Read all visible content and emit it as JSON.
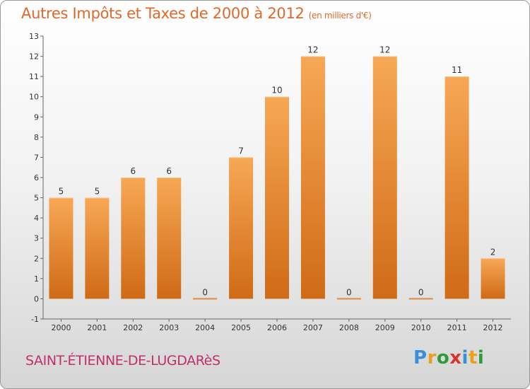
{
  "title": "Autres Impôts et Taxes de 2000 à 2012",
  "subtitle": "(en milliers d'€)",
  "commune": "SAINT-ÉTIENNE-DE-LUGDARèS",
  "logo": {
    "letters": [
      "P",
      "r",
      "o",
      "x",
      "i",
      "t",
      "i"
    ],
    "colors": [
      "#3a8fd6",
      "#e9a11b",
      "#2e9a3a",
      "#d9352d",
      "#3a8fd6",
      "#e9a11b",
      "#2e9a3a"
    ]
  },
  "colors": {
    "bar": "#f08a2b",
    "bar_light": "#f7b063",
    "bar_dark": "#c96416",
    "axis": "#555555",
    "text": "#333333"
  },
  "chart_data": {
    "type": "bar",
    "categories": [
      "2000",
      "2001",
      "2002",
      "2003",
      "2004",
      "2005",
      "2006",
      "2007",
      "2008",
      "2009",
      "2010",
      "2011",
      "2012"
    ],
    "values": [
      5,
      5,
      6,
      6,
      0,
      7,
      10,
      12,
      0,
      12,
      0,
      11,
      2
    ],
    "data_labels": [
      "5",
      "5",
      "6",
      "6",
      "0",
      "7",
      "10",
      "12",
      "0",
      "12",
      "0",
      "11",
      "2"
    ],
    "y_ticks": [
      -1,
      0,
      1,
      2,
      3,
      4,
      5,
      6,
      7,
      8,
      9,
      10,
      11,
      12,
      13
    ],
    "ylim": [
      -1,
      13
    ],
    "grid": false,
    "legend": "none"
  }
}
